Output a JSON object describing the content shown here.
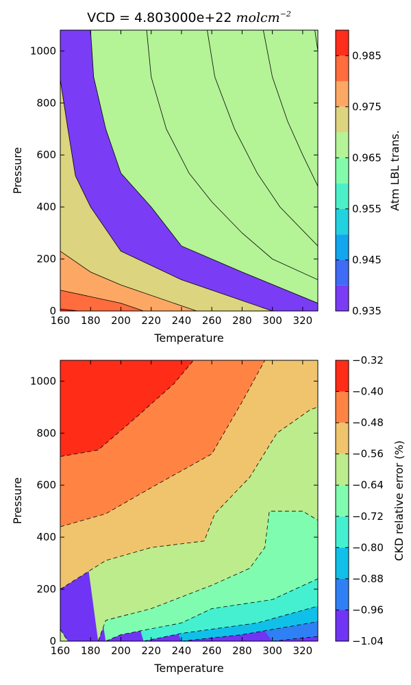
{
  "chart_data": [
    {
      "type": "contour",
      "title": "VCD = 4.803000e+22",
      "title_unit": "molcm",
      "title_unit_exponent": "−2",
      "xlabel": "Temperature",
      "ylabel": "Pressure",
      "colorbar_label": "Atm LBL trans.",
      "xlim": [
        160,
        330
      ],
      "ylim": [
        0,
        1080
      ],
      "xticks": [
        "160",
        "180",
        "200",
        "220",
        "240",
        "260",
        "280",
        "300",
        "320"
      ],
      "yticks": [
        "0",
        "200",
        "400",
        "600",
        "800",
        "1000"
      ],
      "colorbar_ticks": [
        "0.935",
        "0.945",
        "0.955",
        "0.965",
        "0.975",
        "0.985"
      ],
      "colorbar_range": [
        0.935,
        0.99
      ],
      "levels": [
        0.935,
        0.94,
        0.945,
        0.95,
        0.955,
        0.96,
        0.965,
        0.97,
        0.975,
        0.98,
        0.985,
        0.99
      ],
      "colors": [
        "#7a3cf5",
        "#3f6bf5",
        "#12a6ee",
        "#22d2e0",
        "#4cf0c8",
        "#82fcaa",
        "#b4f396",
        "#dcd47e",
        "#fca864",
        "#ff6c3e",
        "#ff2e1c"
      ],
      "contour_line_style": "solid",
      "contour_lines": [
        {
          "level": 0.985,
          "points": [
            [
              160,
              8
            ],
            [
              172,
              0
            ]
          ]
        },
        {
          "level": 0.98,
          "points": [
            [
              160,
              80
            ],
            [
              200,
              30
            ],
            [
              215,
              0
            ]
          ]
        },
        {
          "level": 0.975,
          "points": [
            [
              160,
              230
            ],
            [
              180,
              150
            ],
            [
              200,
              100
            ],
            [
              240,
              20
            ],
            [
              250,
              0
            ]
          ]
        },
        {
          "level": 0.97,
          "points": [
            [
              160,
              890
            ],
            [
              165,
              700
            ],
            [
              170,
              520
            ],
            [
              180,
              400
            ],
            [
              200,
              230
            ],
            [
              240,
              120
            ],
            [
              280,
              40
            ],
            [
              300,
              0
            ]
          ]
        },
        {
          "level": 0.965,
          "points": [
            [
              180,
              1080
            ],
            [
              182,
              900
            ],
            [
              190,
              700
            ],
            [
              200,
              530
            ],
            [
              220,
              400
            ],
            [
              240,
              250
            ],
            [
              280,
              150
            ],
            [
              330,
              30
            ]
          ]
        },
        {
          "level": 0.96,
          "points": [
            [
              217,
              1080
            ],
            [
              220,
              900
            ],
            [
              230,
              700
            ],
            [
              245,
              530
            ],
            [
              260,
              420
            ],
            [
              280,
              300
            ],
            [
              300,
              200
            ],
            [
              330,
              120
            ]
          ]
        },
        {
          "level": 0.955,
          "points": [
            [
              257,
              1080
            ],
            [
              262,
              900
            ],
            [
              275,
              700
            ],
            [
              290,
              530
            ],
            [
              305,
              400
            ],
            [
              330,
              250
            ]
          ]
        },
        {
          "level": 0.95,
          "points": [
            [
              294,
              1080
            ],
            [
              300,
              900
            ],
            [
              310,
              730
            ],
            [
              320,
              600
            ],
            [
              330,
              480
            ]
          ]
        },
        {
          "level": 0.945,
          "points": [
            [
              328,
              1080
            ],
            [
              330,
              1000
            ]
          ]
        }
      ]
    },
    {
      "type": "contour",
      "title": "",
      "xlabel": "Temperature",
      "ylabel": "Pressure",
      "colorbar_label": "CKD relative error (%)",
      "xlim": [
        160,
        330
      ],
      "ylim": [
        0,
        1080
      ],
      "xticks": [
        "160",
        "180",
        "200",
        "220",
        "240",
        "260",
        "280",
        "300",
        "320"
      ],
      "yticks": [
        "0",
        "200",
        "400",
        "600",
        "800",
        "1000"
      ],
      "colorbar_ticks": [
        "−1.04",
        "−0.96",
        "−0.88",
        "−0.80",
        "−0.72",
        "−0.64",
        "−0.56",
        "−0.48",
        "−0.40",
        "−0.32"
      ],
      "colorbar_range": [
        -1.04,
        -0.32
      ],
      "levels": [
        -1.04,
        -0.96,
        -0.88,
        -0.8,
        -0.72,
        -0.64,
        -0.56,
        -0.48,
        -0.4,
        -0.32
      ],
      "colors": [
        "#7034f4",
        "#2f80f4",
        "#10c0e8",
        "#44f0d0",
        "#80fcb0",
        "#bcec8c",
        "#f0c46c",
        "#ff8444",
        "#ff2c18"
      ],
      "contour_line_style": "dashed",
      "contour_lines": [
        {
          "level": -0.4,
          "points": [
            [
              160,
              710
            ],
            [
              185,
              735
            ],
            [
              210,
              860
            ],
            [
              235,
              990
            ],
            [
              248,
              1080
            ]
          ]
        },
        {
          "level": -0.48,
          "points": [
            [
              160,
              440
            ],
            [
              190,
              490
            ],
            [
              220,
              590
            ],
            [
              260,
              720
            ],
            [
              280,
              920
            ],
            [
              295,
              1080
            ]
          ]
        },
        {
          "level": -0.56,
          "points": [
            [
              160,
              200
            ],
            [
              190,
              310
            ],
            [
              220,
              360
            ],
            [
              255,
              385
            ],
            [
              262,
              490
            ],
            [
              285,
              630
            ],
            [
              303,
              800
            ],
            [
              325,
              890
            ],
            [
              330,
              900
            ]
          ]
        },
        {
          "level": -0.64,
          "points": [
            [
              160,
              45
            ],
            [
              165,
              0
            ]
          ]
        },
        {
          "level": -0.64,
          "points": [
            [
              185,
              0
            ],
            [
              190,
              80
            ],
            [
              220,
              125
            ],
            [
              260,
              215
            ],
            [
              285,
              280
            ],
            [
              295,
              360
            ],
            [
              298,
              500
            ],
            [
              320,
              500
            ],
            [
              330,
              465
            ]
          ]
        },
        {
          "level": -0.72,
          "points": [
            [
              190,
              0
            ],
            [
              200,
              25
            ],
            [
              240,
              70
            ],
            [
              260,
              125
            ],
            [
              300,
              160
            ],
            [
              330,
              240
            ]
          ]
        },
        {
          "level": -0.8,
          "points": [
            [
              215,
              0
            ],
            [
              240,
              30
            ],
            [
              290,
              70
            ],
            [
              330,
              135
            ]
          ]
        },
        {
          "level": -0.88,
          "points": [
            [
              240,
              0
            ],
            [
              280,
              25
            ],
            [
              330,
              75
            ]
          ]
        },
        {
          "level": -0.96,
          "points": [
            [
              300,
              0
            ],
            [
              330,
              18
            ]
          ]
        }
      ]
    }
  ]
}
